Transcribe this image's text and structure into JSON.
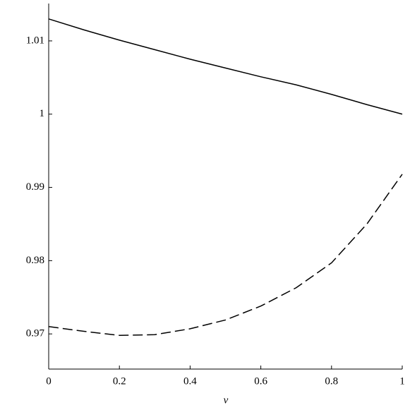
{
  "chart_data": {
    "type": "line",
    "x_label": "v",
    "x": [
      0,
      0.1,
      0.2,
      0.3,
      0.4,
      0.5,
      0.6,
      0.7,
      0.8,
      0.9,
      1
    ],
    "series": [
      {
        "color": "#000000",
        "dash": "solid",
        "values": [
          1.013,
          1.0115,
          1.0101,
          1.0088,
          1.0075,
          1.0063,
          1.0051,
          1.004,
          1.0027,
          1.0013,
          1.0
        ]
      },
      {
        "color": "#000000",
        "dash": "dashed",
        "values": [
          0.971,
          0.97035,
          0.9698,
          0.9699,
          0.9707,
          0.9719,
          0.9738,
          0.9763,
          0.9797,
          0.985,
          0.9918
        ]
      }
    ],
    "xlim": [
      0,
      1
    ],
    "ylim": [
      0.9652,
      1.0151
    ],
    "xticks": [
      0,
      0.2,
      0.4,
      0.6,
      0.8,
      1
    ],
    "yticks": [
      0.97,
      0.98,
      0.99,
      1,
      1.01
    ]
  }
}
